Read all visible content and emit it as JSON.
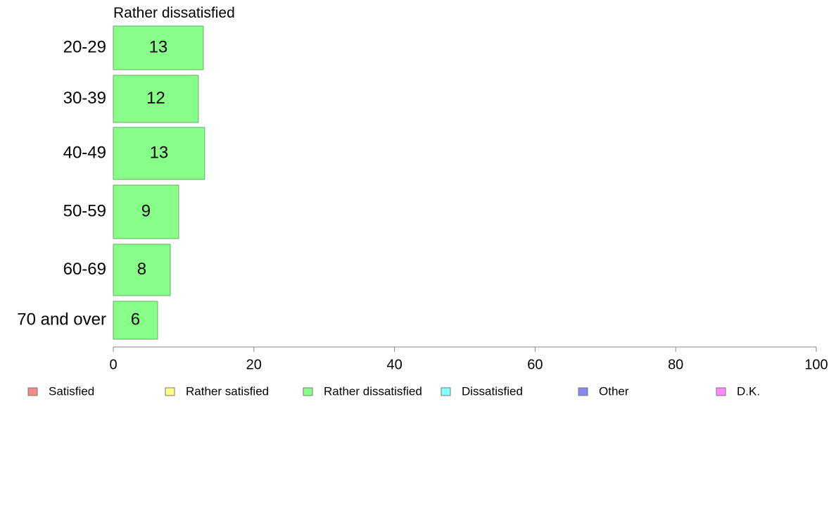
{
  "chart_data": {
    "type": "bar",
    "orientation": "horizontal",
    "title": "Rather dissatisfied",
    "xlabel": "",
    "ylabel": "",
    "categories": [
      "20-29",
      "30-39",
      "40-49",
      "50-59",
      "60-69",
      "70 and over"
    ],
    "series": [
      {
        "name": "Rather dissatisfied",
        "values": [
          12.8,
          12.1,
          13.0,
          9.3,
          8.1,
          6.3
        ],
        "labels": [
          "13",
          "12",
          "13",
          "9",
          "8",
          "6"
        ],
        "color": "#88ff88"
      }
    ],
    "xlim": [
      0,
      100
    ],
    "xticks": [
      0,
      20,
      40,
      60,
      80,
      100
    ],
    "grid": false,
    "legend": {
      "placement": "bottom",
      "entries": [
        {
          "label": "Satisfied",
          "color": "#f28b8b"
        },
        {
          "label": "Rather satisfied",
          "color": "#ffff88"
        },
        {
          "label": "Rather dissatisfied",
          "color": "#88ff88"
        },
        {
          "label": "Dissatisfied",
          "color": "#88ffff"
        },
        {
          "label": "Other",
          "color": "#8888f0"
        },
        {
          "label": "D.K.",
          "color": "#ff88ff"
        }
      ]
    }
  }
}
